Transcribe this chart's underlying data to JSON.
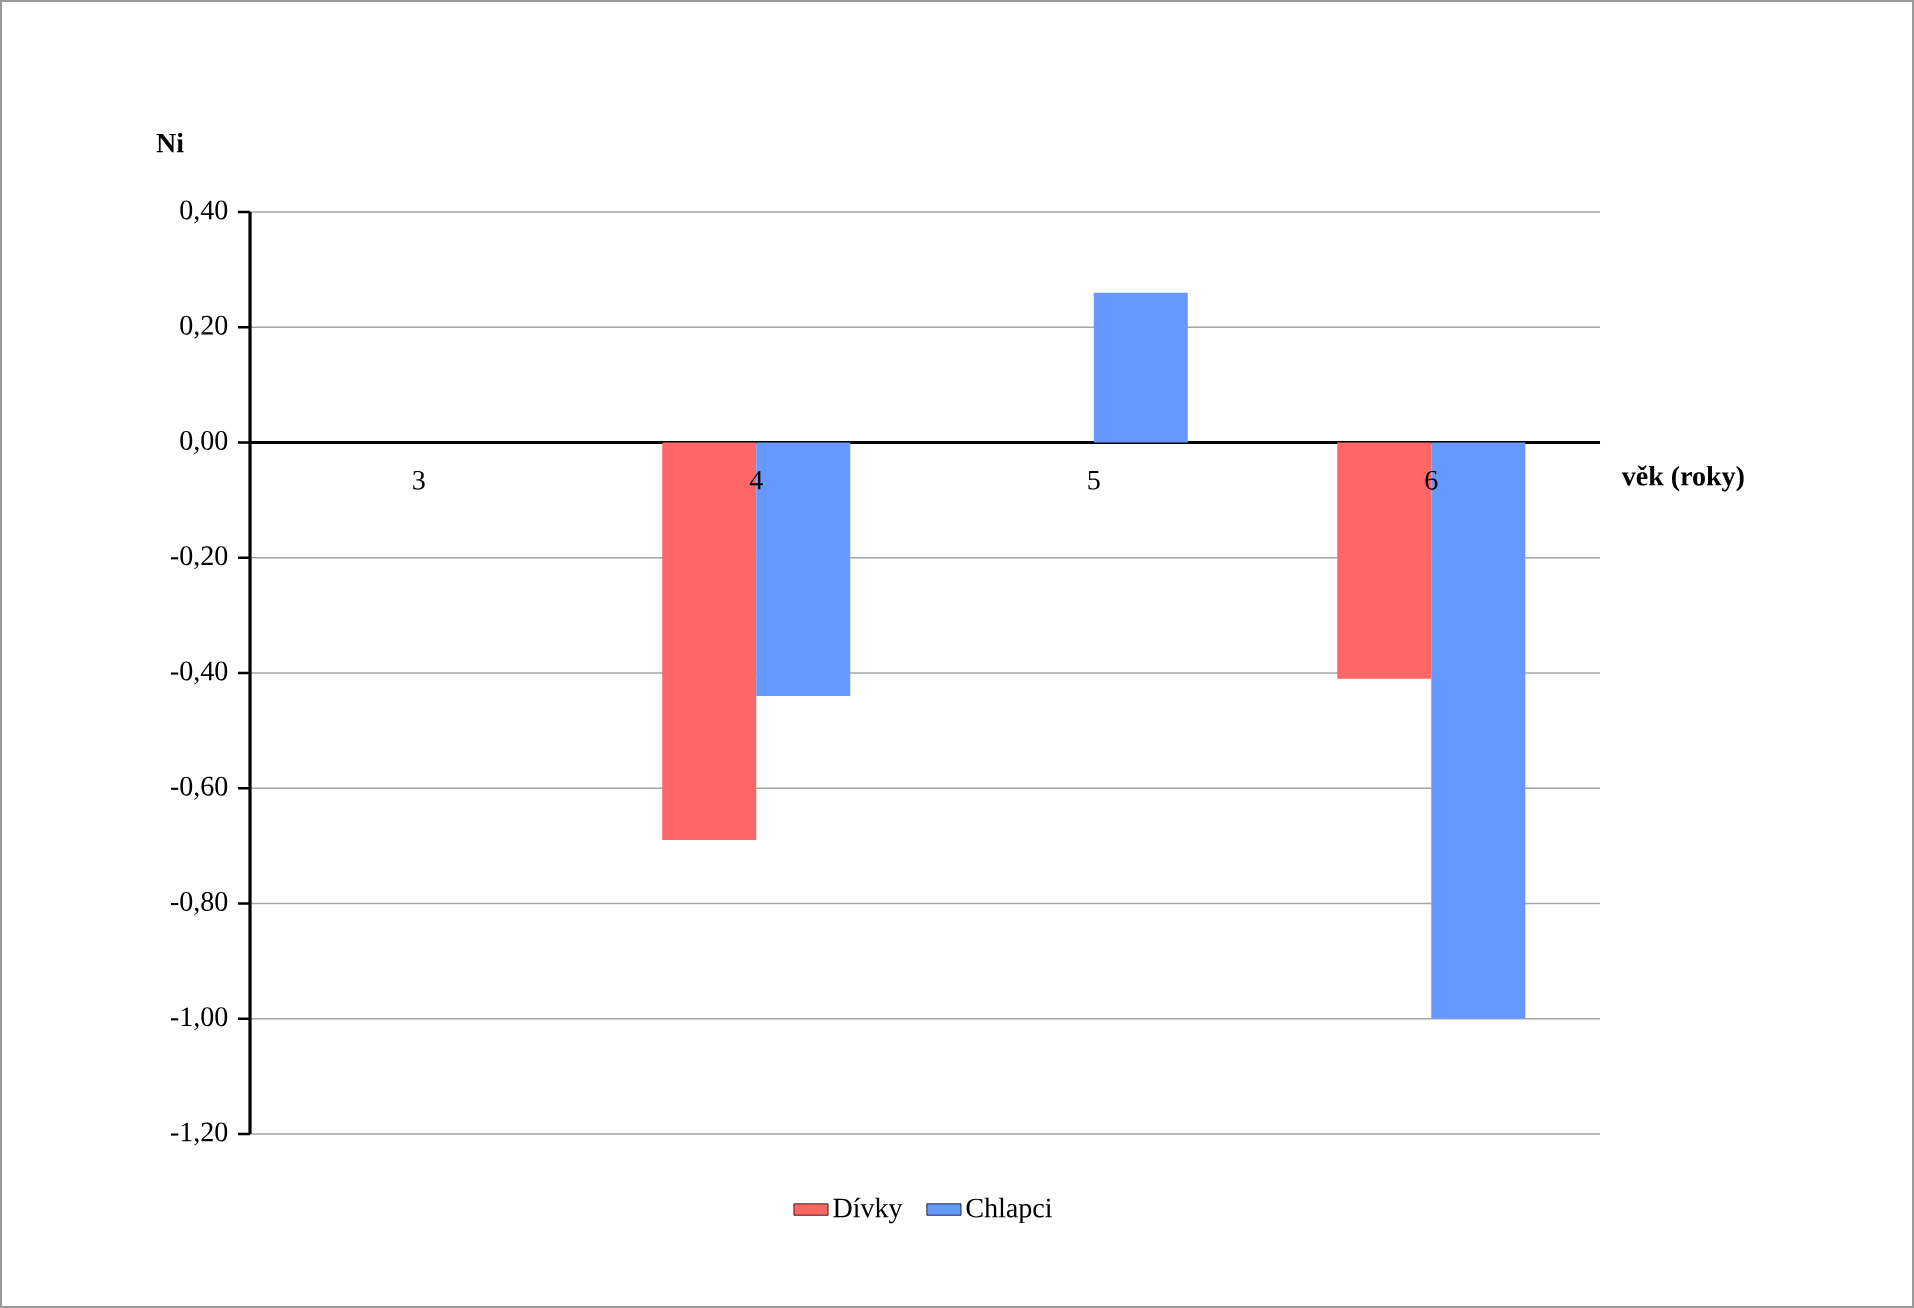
{
  "chart_data": {
    "type": "bar",
    "xlabel": "věk (roky)",
    "ylabel": "Ni",
    "categories": [
      "3",
      "4",
      "5",
      "6"
    ],
    "series": [
      {
        "name": "Dívky",
        "color": "#ff6666",
        "values": [
          0,
          -0.69,
          0,
          -0.41
        ]
      },
      {
        "name": "Chlapci",
        "color": "#6699ff",
        "values": [
          0,
          -0.44,
          0.26,
          -1.0
        ]
      }
    ],
    "ylim": [
      -1.2,
      0.4
    ],
    "yticks": [
      {
        "value": -1.2,
        "label": "-1,20"
      },
      {
        "value": -1.0,
        "label": "-1,00"
      },
      {
        "value": -0.8,
        "label": "-0,80"
      },
      {
        "value": -0.6,
        "label": "-0,60"
      },
      {
        "value": -0.4,
        "label": "-0,40"
      },
      {
        "value": -0.2,
        "label": "-0,20"
      },
      {
        "value": 0,
        "label": "0,00"
      },
      {
        "value": 0.2,
        "label": "0,20"
      },
      {
        "value": 0.4,
        "label": "0,40"
      }
    ],
    "grid": "y",
    "legend": "bottom"
  }
}
